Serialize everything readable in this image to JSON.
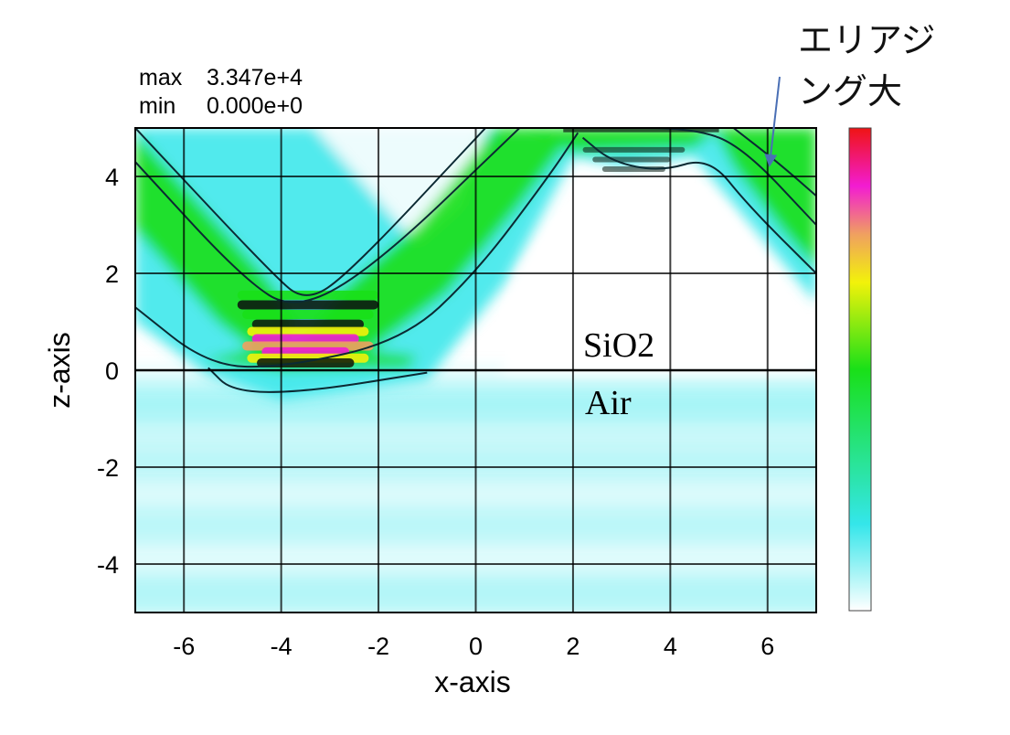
{
  "stats": {
    "max_label": "max",
    "max_value": "3.347e+4",
    "min_label": "min",
    "min_value": "0.000e+0"
  },
  "regions": {
    "upper": "SiO2",
    "lower": "Air"
  },
  "annotation": {
    "line1": "エリアジ",
    "line2": "ング大"
  },
  "colors": {
    "background_low": "#ffffff",
    "cyan": "#34e6ea",
    "green": "#19e018",
    "yellow": "#f2f20a",
    "orange": "#f0a060",
    "magenta": "#f21cd2",
    "red": "#ef1414",
    "contour": "#0b2a33",
    "arrow": "#4a6fb5"
  },
  "chart_data": {
    "type": "heatmap",
    "title": "",
    "xlabel": "x-axis",
    "ylabel": "z-axis",
    "xlim": [
      -7,
      7
    ],
    "ylim": [
      -5,
      5
    ],
    "x_ticks": [
      -6,
      -4,
      -2,
      0,
      2,
      4,
      6
    ],
    "x_tick_labels": [
      "-6",
      "-4",
      "-2",
      "0",
      "2",
      "4",
      "6"
    ],
    "y_ticks": [
      -4,
      -2,
      0,
      2,
      4
    ],
    "y_tick_labels": [
      "-4",
      "-2",
      "0",
      "2",
      "4"
    ],
    "grid": true,
    "colorbar": {
      "position": "right",
      "min": 0,
      "max": 33470,
      "colors": [
        "#ffffff",
        "#34e6ea",
        "#19e018",
        "#f2f20a",
        "#f0a060",
        "#f21cd2",
        "#ef1414"
      ]
    },
    "interface_z": 0,
    "peak_region": {
      "x": [
        -4.5,
        -2.5
      ],
      "z": [
        0.2,
        0.8
      ]
    },
    "contour_lines": [
      {
        "name": "",
        "points": [
          [
            -7,
            5.0
          ],
          [
            -4.2,
            2.0
          ],
          [
            -3.5,
            1.4
          ],
          [
            -2.6,
            2.0
          ],
          [
            0.2,
            5.0
          ]
        ]
      },
      {
        "name": "",
        "points": [
          [
            -7,
            4.3
          ],
          [
            -4.8,
            1.9
          ],
          [
            -3.7,
            1.2
          ],
          [
            -2.0,
            2.2
          ],
          [
            0.9,
            5.0
          ]
        ]
      },
      {
        "name": "",
        "points": [
          [
            -7,
            1.3
          ],
          [
            -5.5,
            0.1
          ],
          [
            -4.0,
            0.05
          ],
          [
            -1.5,
            0.6
          ],
          [
            0.0,
            2.0
          ],
          [
            1.5,
            4.0
          ],
          [
            2.1,
            4.9
          ]
        ]
      },
      {
        "name": "",
        "points": [
          [
            -5.5,
            0.05
          ],
          [
            -5.0,
            -0.45
          ],
          [
            -3.5,
            -0.45
          ],
          [
            -1.0,
            -0.05
          ]
        ]
      },
      {
        "name": "",
        "points": [
          [
            2.2,
            4.8
          ],
          [
            2.8,
            4.3
          ],
          [
            3.8,
            4.1
          ],
          [
            4.8,
            4.4
          ],
          [
            5.6,
            3.4
          ],
          [
            7,
            2.0
          ]
        ]
      },
      {
        "name": "",
        "points": [
          [
            2.5,
            5.0
          ],
          [
            4.5,
            5.0
          ],
          [
            5.5,
            4.6
          ],
          [
            7,
            3.0
          ]
        ]
      },
      {
        "name": "",
        "points": [
          [
            5.3,
            5.0
          ],
          [
            6.2,
            4.3
          ],
          [
            7,
            3.6
          ]
        ]
      }
    ]
  }
}
